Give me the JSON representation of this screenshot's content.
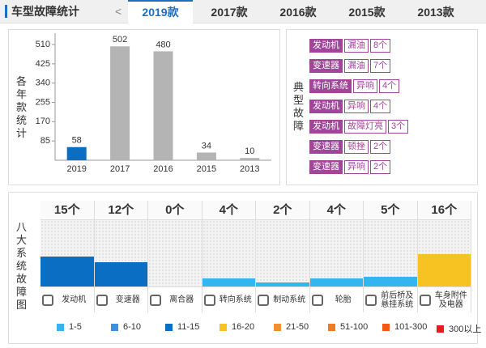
{
  "header": {
    "title": "车型故障统计",
    "prev": "<",
    "tabs": [
      "2019款",
      "2017款",
      "2016款",
      "2015款",
      "2013款"
    ],
    "active_tab": 0
  },
  "chart_data": [
    {
      "type": "bar",
      "y_label": "各年款统计",
      "categories": [
        "2019",
        "2017",
        "2016",
        "2015",
        "2013"
      ],
      "values": [
        58,
        502,
        480,
        34,
        10
      ],
      "colors": [
        "#0a6fc2",
        "#b4b4b4",
        "#b4b4b4",
        "#b4b4b4",
        "#b4b4b4"
      ],
      "ylim": [
        0,
        560
      ],
      "yticks": [
        85,
        170,
        255,
        340,
        425,
        510
      ],
      "grid": false
    },
    {
      "type": "bar",
      "y_label": "八大系统故障图",
      "categories": [
        "发动机",
        "变速器",
        "离合器",
        "转向系统",
        "制动系统",
        "轮胎",
        "前后桥及悬挂系统",
        "车身附件及电器"
      ],
      "values": [
        15,
        12,
        0,
        4,
        2,
        4,
        5,
        16
      ],
      "value_labels": [
        "15个",
        "12个",
        "0个",
        "4个",
        "2个",
        "4个",
        "5个",
        "16个"
      ],
      "colors": [
        "#0a6fc2",
        "#0a6fc2",
        "#33b5f0",
        "#33b5f0",
        "#33b5f0",
        "#33b5f0",
        "#33b5f0",
        "#f7c322"
      ],
      "ylim": [
        0,
        33
      ],
      "legend": [
        {
          "label": "1-5",
          "color": "#33b5f0"
        },
        {
          "label": "6-10",
          "color": "#3d8fe0"
        },
        {
          "label": "11-15",
          "color": "#0a6fc2"
        },
        {
          "label": "16-20",
          "color": "#f7c322"
        },
        {
          "label": "21-50",
          "color": "#f0902e"
        },
        {
          "label": "51-100",
          "color": "#f07a22"
        },
        {
          "label": "101-300",
          "color": "#f05a14"
        },
        {
          "label": "300以上",
          "color": "#e41e1e"
        }
      ]
    }
  ],
  "typical_faults": {
    "label": "典型故障",
    "rows": [
      [
        "发动机",
        "漏油",
        "8个"
      ],
      [
        "变速器",
        "漏油",
        "7个"
      ],
      [
        "转向系统",
        "异响",
        "4个"
      ],
      [
        "发动机",
        "异响",
        "4个"
      ],
      [
        "发动机",
        "故障灯亮",
        "3个"
      ],
      [
        "变速器",
        "顿挫",
        "2个"
      ],
      [
        "变速器",
        "异响",
        "2个"
      ]
    ]
  }
}
